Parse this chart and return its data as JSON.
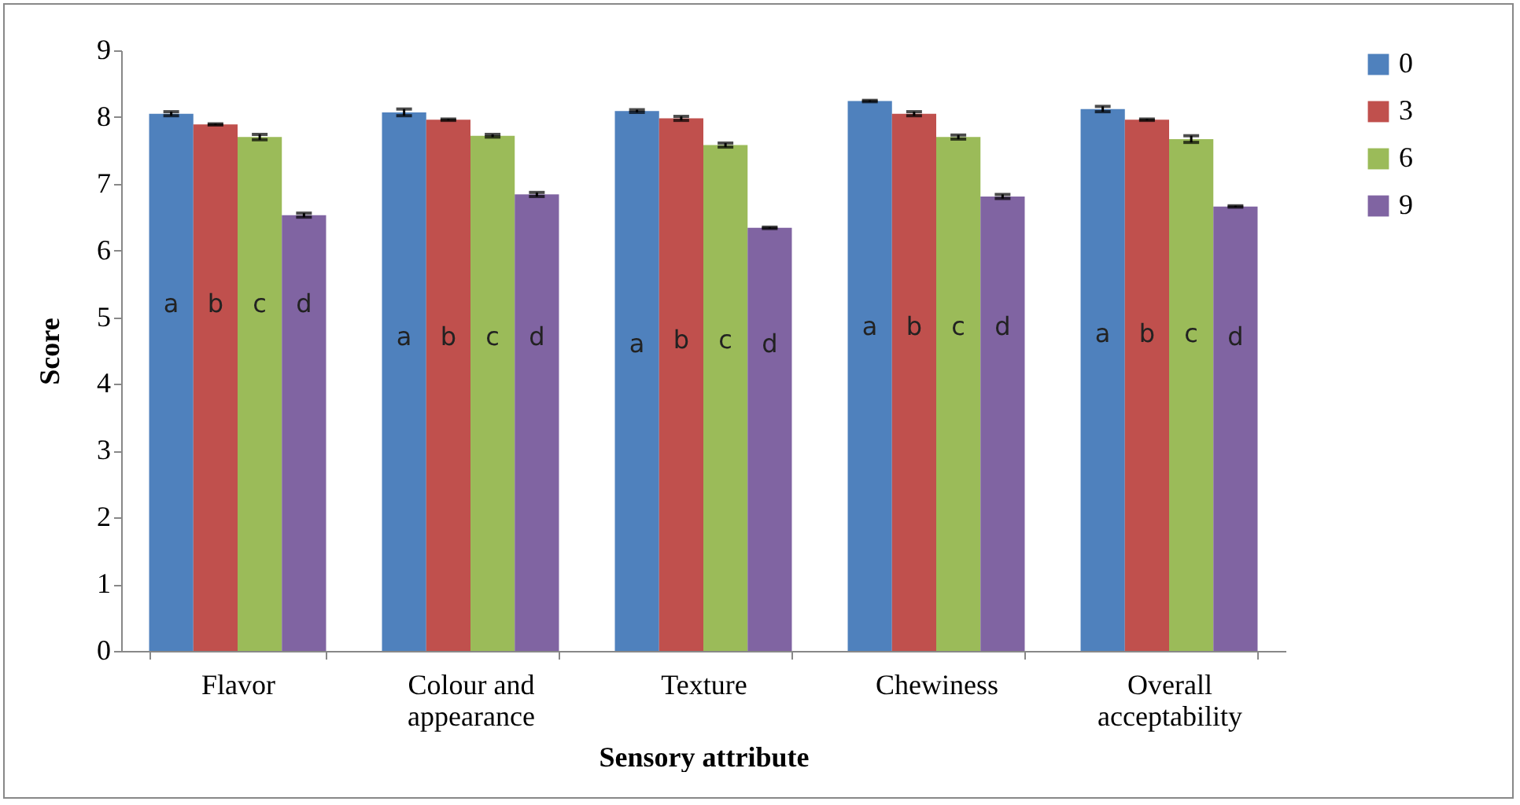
{
  "chart_data": {
    "type": "bar",
    "xlabel": "Sensory attribute",
    "ylabel": "Score",
    "categories": [
      "Flavor",
      "Colour and appearance",
      "Texture",
      "Chewiness",
      "Overall acceptability"
    ],
    "series": [
      {
        "name": "0",
        "color": "#4f81bd",
        "values": [
          8.05,
          8.07,
          8.09,
          8.24,
          8.12
        ],
        "errors": [
          0.03,
          0.05,
          0.02,
          0.01,
          0.04
        ]
      },
      {
        "name": "3",
        "color": "#c0504d",
        "values": [
          7.89,
          7.96,
          7.98,
          8.05,
          7.96
        ],
        "errors": [
          0.01,
          0.01,
          0.03,
          0.03,
          0.01
        ]
      },
      {
        "name": "6",
        "color": "#9bbb59",
        "values": [
          7.7,
          7.72,
          7.58,
          7.7,
          7.67
        ],
        "errors": [
          0.04,
          0.02,
          0.03,
          0.03,
          0.05
        ]
      },
      {
        "name": "9",
        "color": "#8064a2",
        "values": [
          6.53,
          6.84,
          6.34,
          6.81,
          6.66
        ],
        "errors": [
          0.03,
          0.03,
          0.01,
          0.03,
          0.01
        ]
      }
    ],
    "ylim": [
      0,
      9
    ],
    "yticks": [
      0,
      1,
      2,
      3,
      4,
      5,
      6,
      7,
      8,
      9
    ],
    "grid": false,
    "legend": "right",
    "annotations": [
      {
        "text": "a",
        "x": "Flavor",
        "y": 5.2
      },
      {
        "text": "b",
        "x": "Flavor",
        "y": 5.2
      },
      {
        "text": "c",
        "x": "Flavor",
        "y": 5.2
      },
      {
        "text": "d",
        "x": "Flavor",
        "y": 5.2
      },
      {
        "text": "a",
        "x": "Colour and appearance",
        "y": 4.7
      },
      {
        "text": "b",
        "x": "Colour and appearance",
        "y": 4.7
      },
      {
        "text": "c",
        "x": "Colour and appearance",
        "y": 4.7
      },
      {
        "text": "d",
        "x": "Colour and appearance",
        "y": 4.7
      },
      {
        "text": "a",
        "x": "Texture",
        "y": 4.6
      },
      {
        "text": "b",
        "x": "Texture",
        "y": 4.65
      },
      {
        "text": "c",
        "x": "Texture",
        "y": 4.65
      },
      {
        "text": "d",
        "x": "Texture",
        "y": 4.6
      },
      {
        "text": "a",
        "x": "Chewiness",
        "y": 4.85
      },
      {
        "text": "b",
        "x": "Chewiness",
        "y": 4.85
      },
      {
        "text": "c",
        "x": "Chewiness",
        "y": 4.85
      },
      {
        "text": "d",
        "x": "Chewiness",
        "y": 4.85
      },
      {
        "text": "a",
        "x": "Overall acceptability",
        "y": 4.75
      },
      {
        "text": "b",
        "x": "Overall acceptability",
        "y": 4.75
      },
      {
        "text": "c",
        "x": "Overall acceptability",
        "y": 4.75
      },
      {
        "text": "d",
        "x": "Overall acceptability",
        "y": 4.7
      }
    ]
  }
}
